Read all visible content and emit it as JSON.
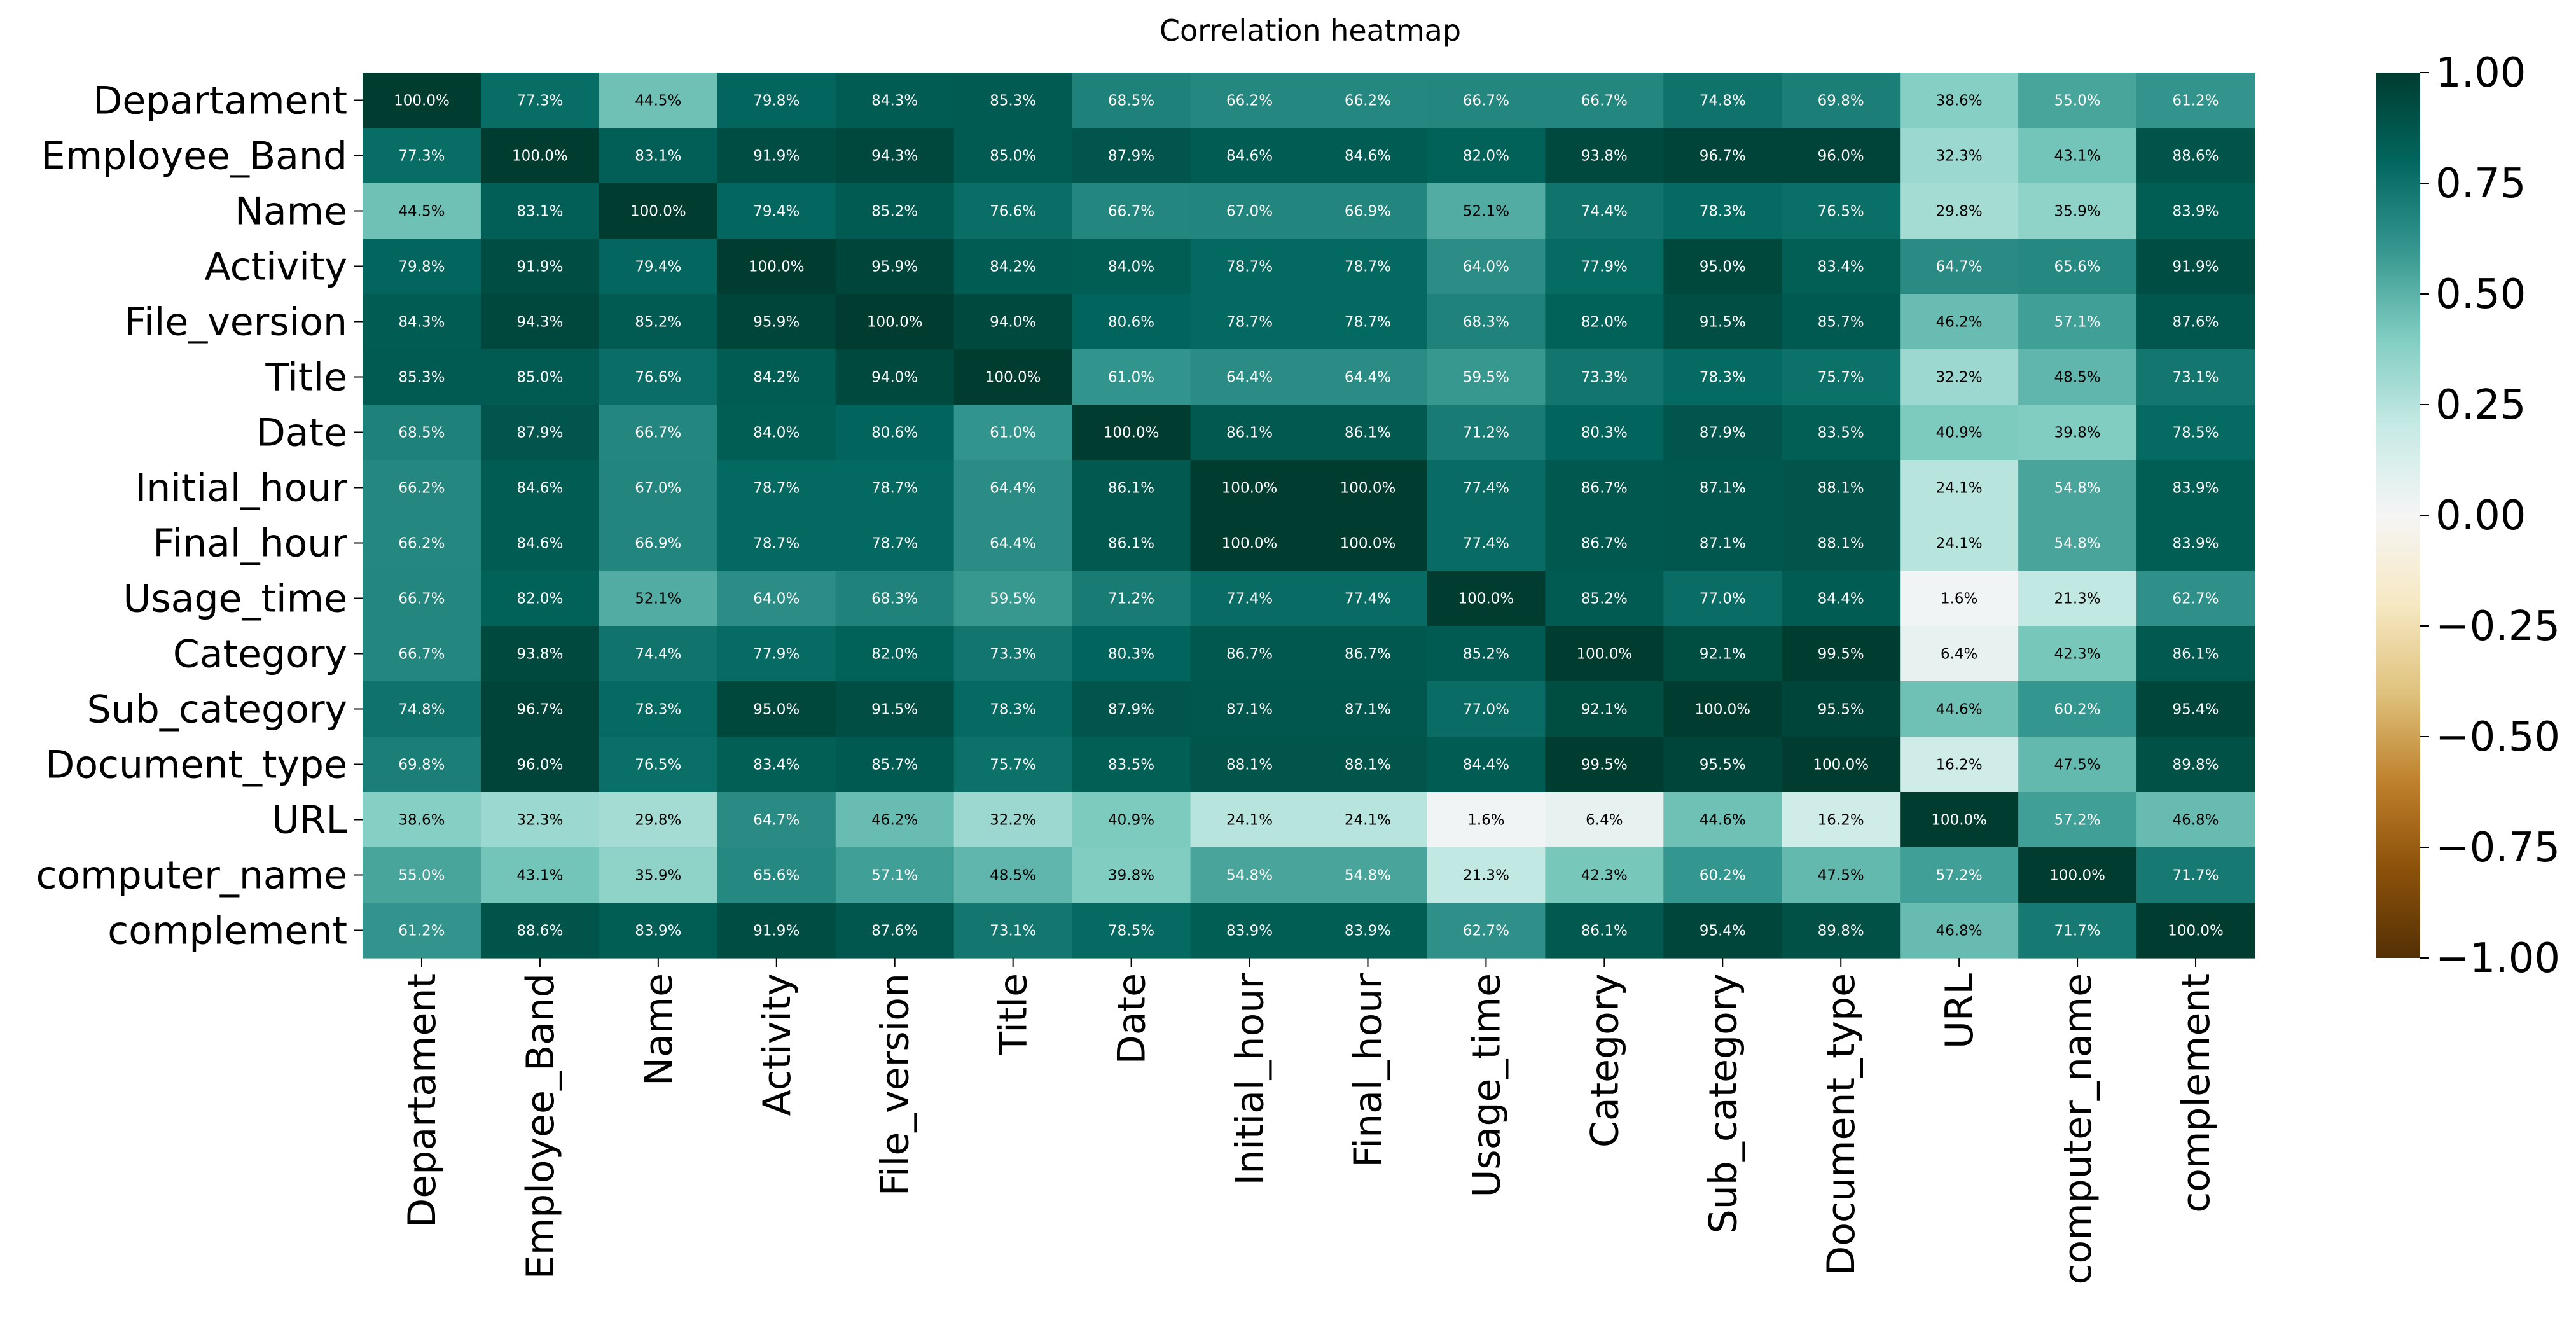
{
  "chart_data": {
    "type": "heatmap",
    "title": "Correlation heatmap",
    "xlabel": "",
    "ylabel": "",
    "categories": [
      "Departament",
      "Employee_Band",
      "Name",
      "Activity",
      "File_version",
      "Title",
      "Date",
      "Initial_hour",
      "Final_hour",
      "Usage_time",
      "Category",
      "Sub_category",
      "Document_type",
      "URL",
      "computer_name",
      "complement"
    ],
    "values": [
      [
        100.0,
        77.3,
        44.5,
        79.8,
        84.3,
        85.3,
        68.5,
        66.2,
        66.2,
        66.7,
        66.7,
        74.8,
        69.8,
        38.6,
        55.0,
        61.2
      ],
      [
        77.3,
        100.0,
        83.1,
        91.9,
        94.3,
        85.0,
        87.9,
        84.6,
        84.6,
        82.0,
        93.8,
        96.7,
        96.0,
        32.3,
        43.1,
        88.6
      ],
      [
        44.5,
        83.1,
        100.0,
        79.4,
        85.2,
        76.6,
        66.7,
        67.0,
        66.9,
        52.1,
        74.4,
        78.3,
        76.5,
        29.8,
        35.9,
        83.9
      ],
      [
        79.8,
        91.9,
        79.4,
        100.0,
        95.9,
        84.2,
        84.0,
        78.7,
        78.7,
        64.0,
        77.9,
        95.0,
        83.4,
        64.7,
        65.6,
        91.9
      ],
      [
        84.3,
        94.3,
        85.2,
        95.9,
        100.0,
        94.0,
        80.6,
        78.7,
        78.7,
        68.3,
        82.0,
        91.5,
        85.7,
        46.2,
        57.1,
        87.6
      ],
      [
        85.3,
        85.0,
        76.6,
        84.2,
        94.0,
        100.0,
        61.0,
        64.4,
        64.4,
        59.5,
        73.3,
        78.3,
        75.7,
        32.2,
        48.5,
        73.1
      ],
      [
        68.5,
        87.9,
        66.7,
        84.0,
        80.6,
        61.0,
        100.0,
        86.1,
        86.1,
        71.2,
        80.3,
        87.9,
        83.5,
        40.9,
        39.8,
        78.5
      ],
      [
        66.2,
        84.6,
        67.0,
        78.7,
        78.7,
        64.4,
        86.1,
        100.0,
        100.0,
        77.4,
        86.7,
        87.1,
        88.1,
        24.1,
        54.8,
        83.9
      ],
      [
        66.2,
        84.6,
        66.9,
        78.7,
        78.7,
        64.4,
        86.1,
        100.0,
        100.0,
        77.4,
        86.7,
        87.1,
        88.1,
        24.1,
        54.8,
        83.9
      ],
      [
        66.7,
        82.0,
        52.1,
        64.0,
        68.3,
        59.5,
        71.2,
        77.4,
        77.4,
        100.0,
        85.2,
        77.0,
        84.4,
        1.6,
        21.3,
        62.7
      ],
      [
        66.7,
        93.8,
        74.4,
        77.9,
        82.0,
        73.3,
        80.3,
        86.7,
        86.7,
        85.2,
        100.0,
        92.1,
        99.5,
        6.4,
        42.3,
        86.1
      ],
      [
        74.8,
        96.7,
        78.3,
        95.0,
        91.5,
        78.3,
        87.9,
        87.1,
        87.1,
        77.0,
        92.1,
        100.0,
        95.5,
        44.6,
        60.2,
        95.4
      ],
      [
        69.8,
        96.0,
        76.5,
        83.4,
        85.7,
        75.7,
        83.5,
        88.1,
        88.1,
        84.4,
        99.5,
        95.5,
        100.0,
        16.2,
        47.5,
        89.8
      ],
      [
        38.6,
        32.3,
        29.8,
        64.7,
        46.2,
        32.2,
        40.9,
        24.1,
        24.1,
        1.6,
        6.4,
        44.6,
        16.2,
        100.0,
        57.2,
        46.8
      ],
      [
        55.0,
        43.1,
        35.9,
        65.6,
        57.1,
        48.5,
        39.8,
        54.8,
        54.8,
        21.3,
        42.3,
        60.2,
        47.5,
        57.2,
        100.0,
        71.7
      ],
      [
        61.2,
        88.6,
        83.9,
        91.9,
        87.6,
        73.1,
        78.5,
        83.9,
        83.9,
        62.7,
        86.1,
        95.4,
        89.8,
        46.8,
        71.7,
        100.0
      ]
    ],
    "value_format": "percent_1dp",
    "colormap": "BrBG",
    "vmin": -1.0,
    "vmax": 1.0,
    "colorbar_ticks": [
      "1.00",
      "0.75",
      "0.50",
      "0.25",
      "0.00",
      "−0.25",
      "−0.50",
      "−0.75",
      "−1.00"
    ],
    "colorbar_tick_values": [
      1.0,
      0.75,
      0.5,
      0.25,
      0.0,
      -0.25,
      -0.5,
      -0.75,
      -1.0
    ],
    "annotations": true,
    "grid": false,
    "legend": "colorbar-right"
  }
}
